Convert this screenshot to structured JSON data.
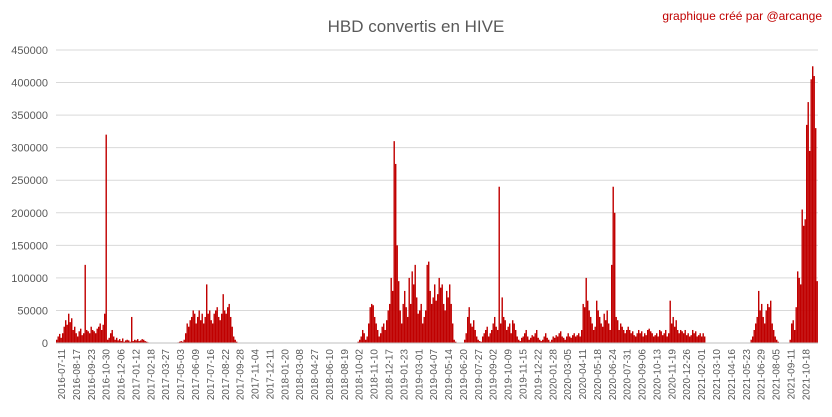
{
  "chart_data": {
    "type": "bar",
    "title": "HBD convertis en HIVE",
    "credit": "graphique créé par @arcange",
    "xlabel": "",
    "ylabel": "",
    "ylim": [
      0,
      450000
    ],
    "grid": true,
    "legend": "none",
    "bar_color": "#c00000",
    "y_ticks": [
      0,
      50000,
      100000,
      150000,
      200000,
      250000,
      300000,
      350000,
      400000,
      450000
    ],
    "y_tick_labels": [
      "0",
      "50000",
      "100000",
      "150000",
      "200000",
      "250000",
      "300000",
      "350000",
      "400000",
      "450000"
    ],
    "x_tick_labels": [
      "2016-07-11",
      "2016-08-17",
      "2016-09-23",
      "2016-10-30",
      "2016-12-06",
      "2017-01-12",
      "2017-02-18",
      "2017-03-27",
      "2017-05-03",
      "2017-06-09",
      "2017-07-16",
      "2017-08-22",
      "2017-09-28",
      "2017-11-04",
      "2017-12-11",
      "2018-01-20",
      "2018-03-08",
      "2018-04-27",
      "2018-06-10",
      "2018-08-19",
      "2018-10-02",
      "2018-11-10",
      "2018-12-17",
      "2019-01-23",
      "2019-03-01",
      "2019-04-07",
      "2019-05-14",
      "2019-06-20",
      "2019-07-27",
      "2019-09-02",
      "2019-10-09",
      "2019-11-15",
      "2019-12-22",
      "2020-01-28",
      "2020-03-05",
      "2020-04-11",
      "2020-05-18",
      "2020-06-24",
      "2020-07-31",
      "2020-09-06",
      "2020-10-13",
      "2020-11-19",
      "2020-12-26",
      "2021-02-01",
      "2021-03-10",
      "2021-04-16",
      "2021-05-23",
      "2021-06-29",
      "2021-08-05",
      "2021-09-11",
      "2021-10-18"
    ],
    "series": [
      {
        "values": [
          5000,
          10000,
          14000,
          8000,
          15000,
          25000,
          35000,
          28000,
          45000,
          32000,
          38000,
          20000,
          25000,
          15000,
          10000,
          18000,
          22000,
          12000,
          15000,
          120000,
          20000,
          18000,
          15000,
          25000,
          20000,
          18000,
          15000,
          22000,
          25000,
          30000,
          20000,
          28000,
          45000,
          320000,
          5000,
          8000,
          15000,
          20000,
          10000,
          5000,
          8000,
          4000,
          6000,
          3000,
          7000,
          2000,
          4000,
          5000,
          4000,
          2000,
          40000,
          3000,
          5000,
          4000,
          6000,
          3000,
          4000,
          6000,
          5000,
          3000,
          2000,
          1000,
          0,
          0,
          0,
          0,
          0,
          0,
          0,
          0,
          0,
          0,
          0,
          0,
          0,
          0,
          0,
          0,
          0,
          0,
          0,
          1000,
          2000,
          3000,
          2000,
          5000,
          15000,
          30000,
          25000,
          35000,
          40000,
          50000,
          45000,
          30000,
          40000,
          50000,
          35000,
          45000,
          30000,
          40000,
          90000,
          45000,
          50000,
          35000,
          30000,
          45000,
          50000,
          55000,
          40000,
          35000,
          45000,
          75000,
          50000,
          45000,
          55000,
          60000,
          40000,
          25000,
          10000,
          5000,
          2000,
          0,
          0,
          0,
          0,
          0,
          0,
          0,
          0,
          0,
          0,
          0,
          0,
          0,
          0,
          0,
          0,
          0,
          0,
          0,
          0,
          0,
          0,
          0,
          0,
          0,
          0,
          0,
          0,
          0,
          0,
          0,
          0,
          0,
          0,
          0,
          0,
          0,
          0,
          0,
          0,
          0,
          0,
          0,
          0,
          0,
          0,
          0,
          0,
          0,
          0,
          0,
          0,
          0,
          0,
          0,
          0,
          0,
          0,
          0,
          0,
          0,
          0,
          0,
          0,
          0,
          0,
          0,
          0,
          0,
          0,
          0,
          0,
          0,
          0,
          0,
          0,
          0,
          0,
          0,
          0,
          2000,
          5000,
          10000,
          20000,
          15000,
          5000,
          10000,
          30000,
          55000,
          60000,
          58000,
          40000,
          30000,
          20000,
          10000,
          15000,
          25000,
          30000,
          20000,
          35000,
          50000,
          60000,
          100000,
          80000,
          310000,
          275000,
          150000,
          95000,
          50000,
          30000,
          60000,
          80000,
          55000,
          40000,
          100000,
          60000,
          110000,
          90000,
          120000,
          70000,
          45000,
          50000,
          60000,
          30000,
          40000,
          50000,
          120000,
          125000,
          80000,
          60000,
          70000,
          90000,
          65000,
          75000,
          100000,
          85000,
          90000,
          60000,
          50000,
          80000,
          70000,
          90000,
          60000,
          30000,
          5000,
          2000,
          0,
          0,
          0,
          0,
          0,
          5000,
          15000,
          40000,
          55000,
          30000,
          25000,
          35000,
          20000,
          10000,
          5000,
          3000,
          2000,
          10000,
          15000,
          20000,
          25000,
          10000,
          15000,
          20000,
          30000,
          40000,
          25000,
          20000,
          240000,
          30000,
          70000,
          40000,
          35000,
          20000,
          25000,
          30000,
          15000,
          35000,
          30000,
          20000,
          10000,
          5000,
          3000,
          8000,
          10000,
          15000,
          20000,
          10000,
          5000,
          8000,
          12000,
          10000,
          15000,
          20000,
          8000,
          5000,
          3000,
          5000,
          10000,
          15000,
          8000,
          5000,
          2000,
          5000,
          10000,
          8000,
          12000,
          10000,
          15000,
          18000,
          10000,
          8000,
          5000,
          10000,
          15000,
          10000,
          8000,
          12000,
          15000,
          10000,
          12000,
          15000,
          10000,
          20000,
          60000,
          55000,
          100000,
          65000,
          50000,
          40000,
          30000,
          20000,
          25000,
          65000,
          50000,
          40000,
          30000,
          25000,
          45000,
          35000,
          50000,
          30000,
          20000,
          120000,
          240000,
          200000,
          40000,
          35000,
          20000,
          30000,
          25000,
          20000,
          15000,
          20000,
          25000,
          20000,
          15000,
          18000,
          12000,
          10000,
          15000,
          20000,
          15000,
          18000,
          10000,
          15000,
          12000,
          20000,
          22000,
          18000,
          15000,
          10000,
          12000,
          15000,
          10000,
          20000,
          18000,
          12000,
          15000,
          20000,
          10000,
          15000,
          65000,
          30000,
          40000,
          25000,
          35000,
          20000,
          15000,
          20000,
          18000,
          15000,
          20000,
          12000,
          15000,
          10000,
          12000,
          20000,
          15000,
          18000,
          10000,
          12000,
          15000,
          10000,
          15000,
          10000,
          0,
          0,
          0,
          0,
          0,
          0,
          0,
          0,
          0,
          0,
          0,
          0,
          0,
          0,
          0,
          0,
          0,
          0,
          0,
          0,
          0,
          0,
          0,
          0,
          0,
          0,
          0,
          0,
          0,
          0,
          5000,
          10000,
          20000,
          30000,
          40000,
          80000,
          50000,
          60000,
          40000,
          30000,
          50000,
          60000,
          55000,
          65000,
          30000,
          20000,
          10000,
          5000,
          2000,
          0,
          0,
          0,
          0,
          0,
          0,
          0,
          5000,
          30000,
          35000,
          20000,
          55000,
          110000,
          100000,
          90000,
          205000,
          180000,
          190000,
          335000,
          370000,
          295000,
          405000,
          425000,
          410000,
          330000,
          95000
        ]
      }
    ]
  }
}
